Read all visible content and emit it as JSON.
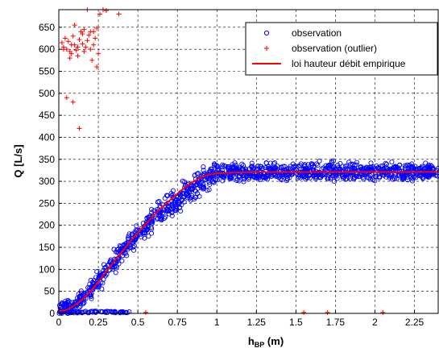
{
  "chart_data": {
    "type": "scatter",
    "title": "",
    "xlabel": "h",
    "xlabel_sub": "BP",
    "xlabel_unit": " (m)",
    "ylabel": "Q [L/s]",
    "xlim": [
      0,
      2.4
    ],
    "ylim": [
      0,
      690
    ],
    "xticks": [
      0,
      0.25,
      0.5,
      0.75,
      1,
      1.25,
      1.5,
      1.75,
      2,
      2.25
    ],
    "xtick_labels": [
      "0",
      "0.25",
      "0.5",
      "0.75",
      "1",
      "1.25",
      "1.5",
      "1.75",
      "2",
      "2.25"
    ],
    "yticks": [
      0,
      50,
      100,
      150,
      200,
      250,
      300,
      350,
      400,
      450,
      500,
      550,
      600,
      650
    ],
    "ytick_labels": [
      "0",
      "50",
      "100",
      "150",
      "200",
      "250",
      "300",
      "350",
      "400",
      "450",
      "500",
      "550",
      "600",
      "650"
    ],
    "grid": true,
    "legend_position": "top-right",
    "colors": {
      "observation": "#0000ff",
      "outlier": "#ff0000",
      "rating_curve": "#ff0000"
    },
    "series": [
      {
        "name": "observation",
        "marker": "circle",
        "color": "#0000ff",
        "description_points_sampled": true,
        "segments": [
          {
            "x_range": [
              0.0,
              0.2
            ],
            "y_center_at": [
              [
                0.0,
                8
              ],
              [
                0.1,
                18
              ],
              [
                0.2,
                55
              ]
            ],
            "spread": 12
          },
          {
            "x_range": [
              0.2,
              0.5
            ],
            "y_center_at": [
              [
                0.2,
                55
              ],
              [
                0.3,
                95
              ],
              [
                0.4,
                140
              ],
              [
                0.5,
                180
              ]
            ],
            "spread": 18
          },
          {
            "x_range": [
              0.5,
              1.0
            ],
            "y_center_at": [
              [
                0.5,
                180
              ],
              [
                0.6,
                215
              ],
              [
                0.7,
                245
              ],
              [
                0.8,
                275
              ],
              [
                0.9,
                300
              ],
              [
                1.0,
                318
              ]
            ],
            "spread": 20
          },
          {
            "x_range": [
              1.0,
              2.4
            ],
            "y_center_at": [
              [
                1.0,
                320
              ],
              [
                2.4,
                322
              ]
            ],
            "spread": 15
          }
        ]
      },
      {
        "name": "observation (outlier)",
        "marker": "plus",
        "color": "#ff0000",
        "x": [
          0.02,
          0.03,
          0.04,
          0.05,
          0.06,
          0.07,
          0.08,
          0.09,
          0.1,
          0.11,
          0.12,
          0.13,
          0.14,
          0.15,
          0.16,
          0.17,
          0.18,
          0.19,
          0.2,
          0.21,
          0.22,
          0.23,
          0.24,
          0.25,
          0.12,
          0.05,
          0.09,
          0.18,
          0.26,
          0.28,
          0.3,
          0.38,
          0.13,
          0.22,
          0.24,
          0.2,
          0.16,
          0.1,
          0.08,
          0.03,
          0.07,
          0.15,
          0.55,
          1.55,
          1.7,
          2.05
        ],
        "y": [
          615,
          605,
          625,
          600,
          618,
          580,
          590,
          630,
          610,
          598,
          585,
          622,
          640,
          612,
          595,
          605,
          620,
          632,
          600,
          575,
          610,
          625,
          560,
          590,
          605,
          490,
          480,
          690,
          680,
          690,
          688,
          680,
          420,
          640,
          648,
          640,
          645,
          655,
          610,
          600,
          595,
          635,
          2,
          2,
          2,
          2
        ]
      },
      {
        "name": "loi hauteur débit empirique",
        "marker": "line",
        "color": "#ff0000",
        "x": [
          0.0,
          0.05,
          0.1,
          0.15,
          0.2,
          0.25,
          0.3,
          0.35,
          0.4,
          0.45,
          0.5,
          0.55,
          0.6,
          0.65,
          0.7,
          0.75,
          0.8,
          0.85,
          0.9,
          0.95,
          1.0,
          1.1,
          1.25,
          1.5,
          1.75,
          2.0,
          2.25,
          2.4
        ],
        "y": [
          5,
          8,
          18,
          32,
          50,
          72,
          95,
          118,
          140,
          162,
          183,
          203,
          222,
          240,
          256,
          272,
          287,
          299,
          309,
          315,
          318,
          320,
          321,
          321,
          321,
          321,
          321,
          322
        ]
      }
    ]
  },
  "legend": {
    "items": [
      {
        "label": "observation"
      },
      {
        "label": "observation (outlier)"
      },
      {
        "label": "loi hauteur débit empirique"
      }
    ]
  }
}
